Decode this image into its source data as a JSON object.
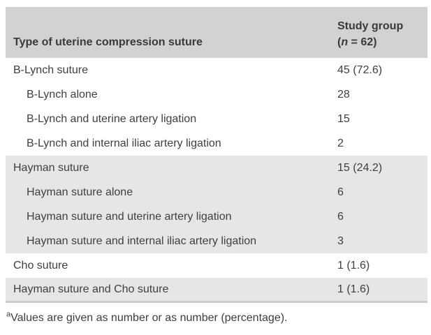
{
  "table": {
    "header": {
      "col1": "Type of uterine compression suture",
      "col2_line1": "Study group",
      "col2_paren_open": "(",
      "col2_n": "n",
      "col2_rest": " = 62)"
    },
    "rows": [
      {
        "label": "B-Lynch suture",
        "value": "45 (72.6)"
      },
      {
        "label": "B-Lynch alone",
        "value": "28"
      },
      {
        "label": "B-Lynch and uterine artery ligation",
        "value": "15"
      },
      {
        "label": "B-Lynch and internal iliac artery ligation",
        "value": "2"
      },
      {
        "label": "Hayman suture",
        "value": "15 (24.2)"
      },
      {
        "label": "Hayman suture alone",
        "value": "6"
      },
      {
        "label": "Hayman suture and uterine artery ligation",
        "value": "6"
      },
      {
        "label": "Hayman suture and internal iliac artery ligation",
        "value": "3"
      },
      {
        "label": "Cho suture",
        "value": "1 (1.6)"
      },
      {
        "label": "Hayman suture and Cho suture",
        "value": "1 (1.6)"
      }
    ],
    "footnote": {
      "marker": "a",
      "text": "Values are given as number or as number (percentage)."
    }
  },
  "colors": {
    "header_bg": "#d2d2d2",
    "shaded_row_bg": "#e6e6e6",
    "bottom_border": "#cbcbcb",
    "text": "#3f3f3f"
  }
}
